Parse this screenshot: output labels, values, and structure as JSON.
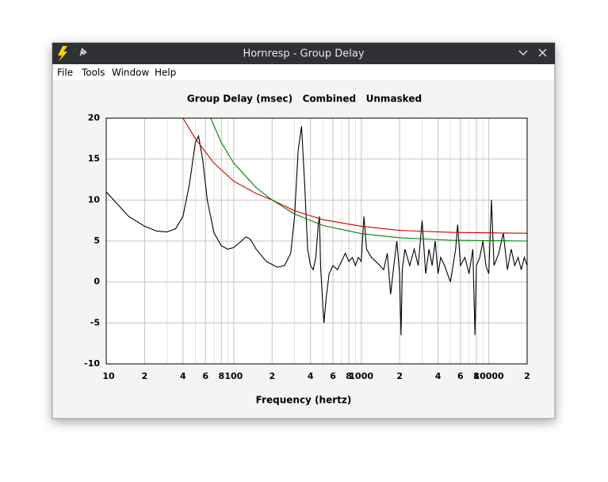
{
  "window": {
    "title": "Hornresp - Group Delay"
  },
  "menu": [
    "File",
    "Tools",
    "Window",
    "Help"
  ],
  "chart_data": {
    "type": "line",
    "title": "Group Delay (msec)   Combined   Unmasked",
    "xlabel": "Frequency (hertz)",
    "xscale": "log",
    "xlim": [
      10,
      20000
    ],
    "ylim": [
      -10,
      20
    ],
    "xticks": [
      10,
      {
        "value": 20,
        "label": "2"
      },
      {
        "value": 40,
        "label": "4"
      },
      {
        "value": 60,
        "label": "6"
      },
      {
        "value": 80,
        "label": "8"
      },
      100,
      {
        "value": 200,
        "label": "2"
      },
      {
        "value": 400,
        "label": "4"
      },
      {
        "value": 600,
        "label": "6"
      },
      {
        "value": 800,
        "label": "8"
      },
      1000,
      {
        "value": 2000,
        "label": "2"
      },
      {
        "value": 4000,
        "label": "4"
      },
      {
        "value": 6000,
        "label": "6"
      },
      {
        "value": 8000,
        "label": "8"
      },
      10000,
      {
        "value": 20000,
        "label": "2"
      }
    ],
    "xminor_ticks": [
      30,
      50,
      70,
      90,
      300,
      500,
      700,
      900,
      3000,
      5000,
      7000,
      9000
    ],
    "yticks": [
      -10,
      -5,
      0,
      5,
      10,
      15,
      20
    ],
    "grid": true,
    "series": [
      {
        "color": "#000000",
        "x": [
          10,
          15,
          20,
          25,
          30,
          35,
          40,
          45,
          50,
          53,
          57,
          62,
          70,
          80,
          90,
          100,
          115,
          125,
          135,
          150,
          180,
          220,
          250,
          280,
          300,
          320,
          340,
          360,
          380,
          400,
          420,
          440,
          460,
          470,
          480,
          500,
          510,
          530,
          560,
          600,
          650,
          700,
          750,
          800,
          850,
          900,
          950,
          1000,
          1050,
          1100,
          1200,
          1300,
          1400,
          1500,
          1600,
          1700,
          1800,
          1900,
          2000,
          2050,
          2100,
          2200,
          2400,
          2600,
          2800,
          3000,
          3200,
          3400,
          3600,
          3800,
          4000,
          4200,
          4500,
          5000,
          5500,
          5700,
          6000,
          6500,
          7000,
          7500,
          7800,
          8000,
          8500,
          9000,
          9500,
          10000,
          10500,
          11000,
          12000,
          13000,
          14000,
          15000,
          16000,
          17000,
          18000,
          19000,
          20000
        ],
        "values": [
          11,
          8,
          6.8,
          6.2,
          6.1,
          6.5,
          8,
          12,
          17,
          17.8,
          15,
          10,
          6,
          4.4,
          4,
          4.2,
          5,
          5.5,
          5.2,
          4,
          2.5,
          1.8,
          2,
          3.5,
          8,
          16,
          19,
          12,
          4,
          2,
          1.5,
          3,
          7,
          8,
          2,
          -3,
          -5,
          -2,
          1,
          2,
          1.5,
          2.5,
          3.5,
          2.5,
          3,
          2,
          3,
          2.5,
          8,
          4,
          3,
          2.5,
          2,
          1.5,
          3.5,
          -1.5,
          2,
          5,
          1,
          -6.5,
          1.5,
          4,
          2,
          4,
          2,
          7.5,
          1,
          4,
          2,
          5,
          1,
          3,
          2,
          0,
          4,
          7,
          2,
          3,
          1,
          4,
          -6.5,
          2,
          3,
          5,
          2,
          1,
          10,
          2,
          3.5,
          6,
          1.5,
          4,
          2,
          3,
          1.5,
          3,
          2
        ]
      },
      {
        "color": "#cc0000",
        "x": [
          40,
          50,
          70,
          100,
          150,
          200,
          300,
          500,
          1000,
          2000,
          5000,
          10000,
          20000
        ],
        "values": [
          20,
          17.5,
          14.5,
          12.3,
          10.8,
          10,
          8.7,
          7.6,
          6.8,
          6.3,
          6.05,
          6,
          5.95
        ]
      },
      {
        "color": "#008000",
        "x": [
          66,
          80,
          100,
          150,
          200,
          300,
          500,
          1000,
          2000,
          5000,
          10000,
          20000
        ],
        "values": [
          20,
          17,
          14.5,
          11.5,
          10,
          8.3,
          6.9,
          5.9,
          5.4,
          5.1,
          5.05,
          5
        ]
      }
    ]
  }
}
